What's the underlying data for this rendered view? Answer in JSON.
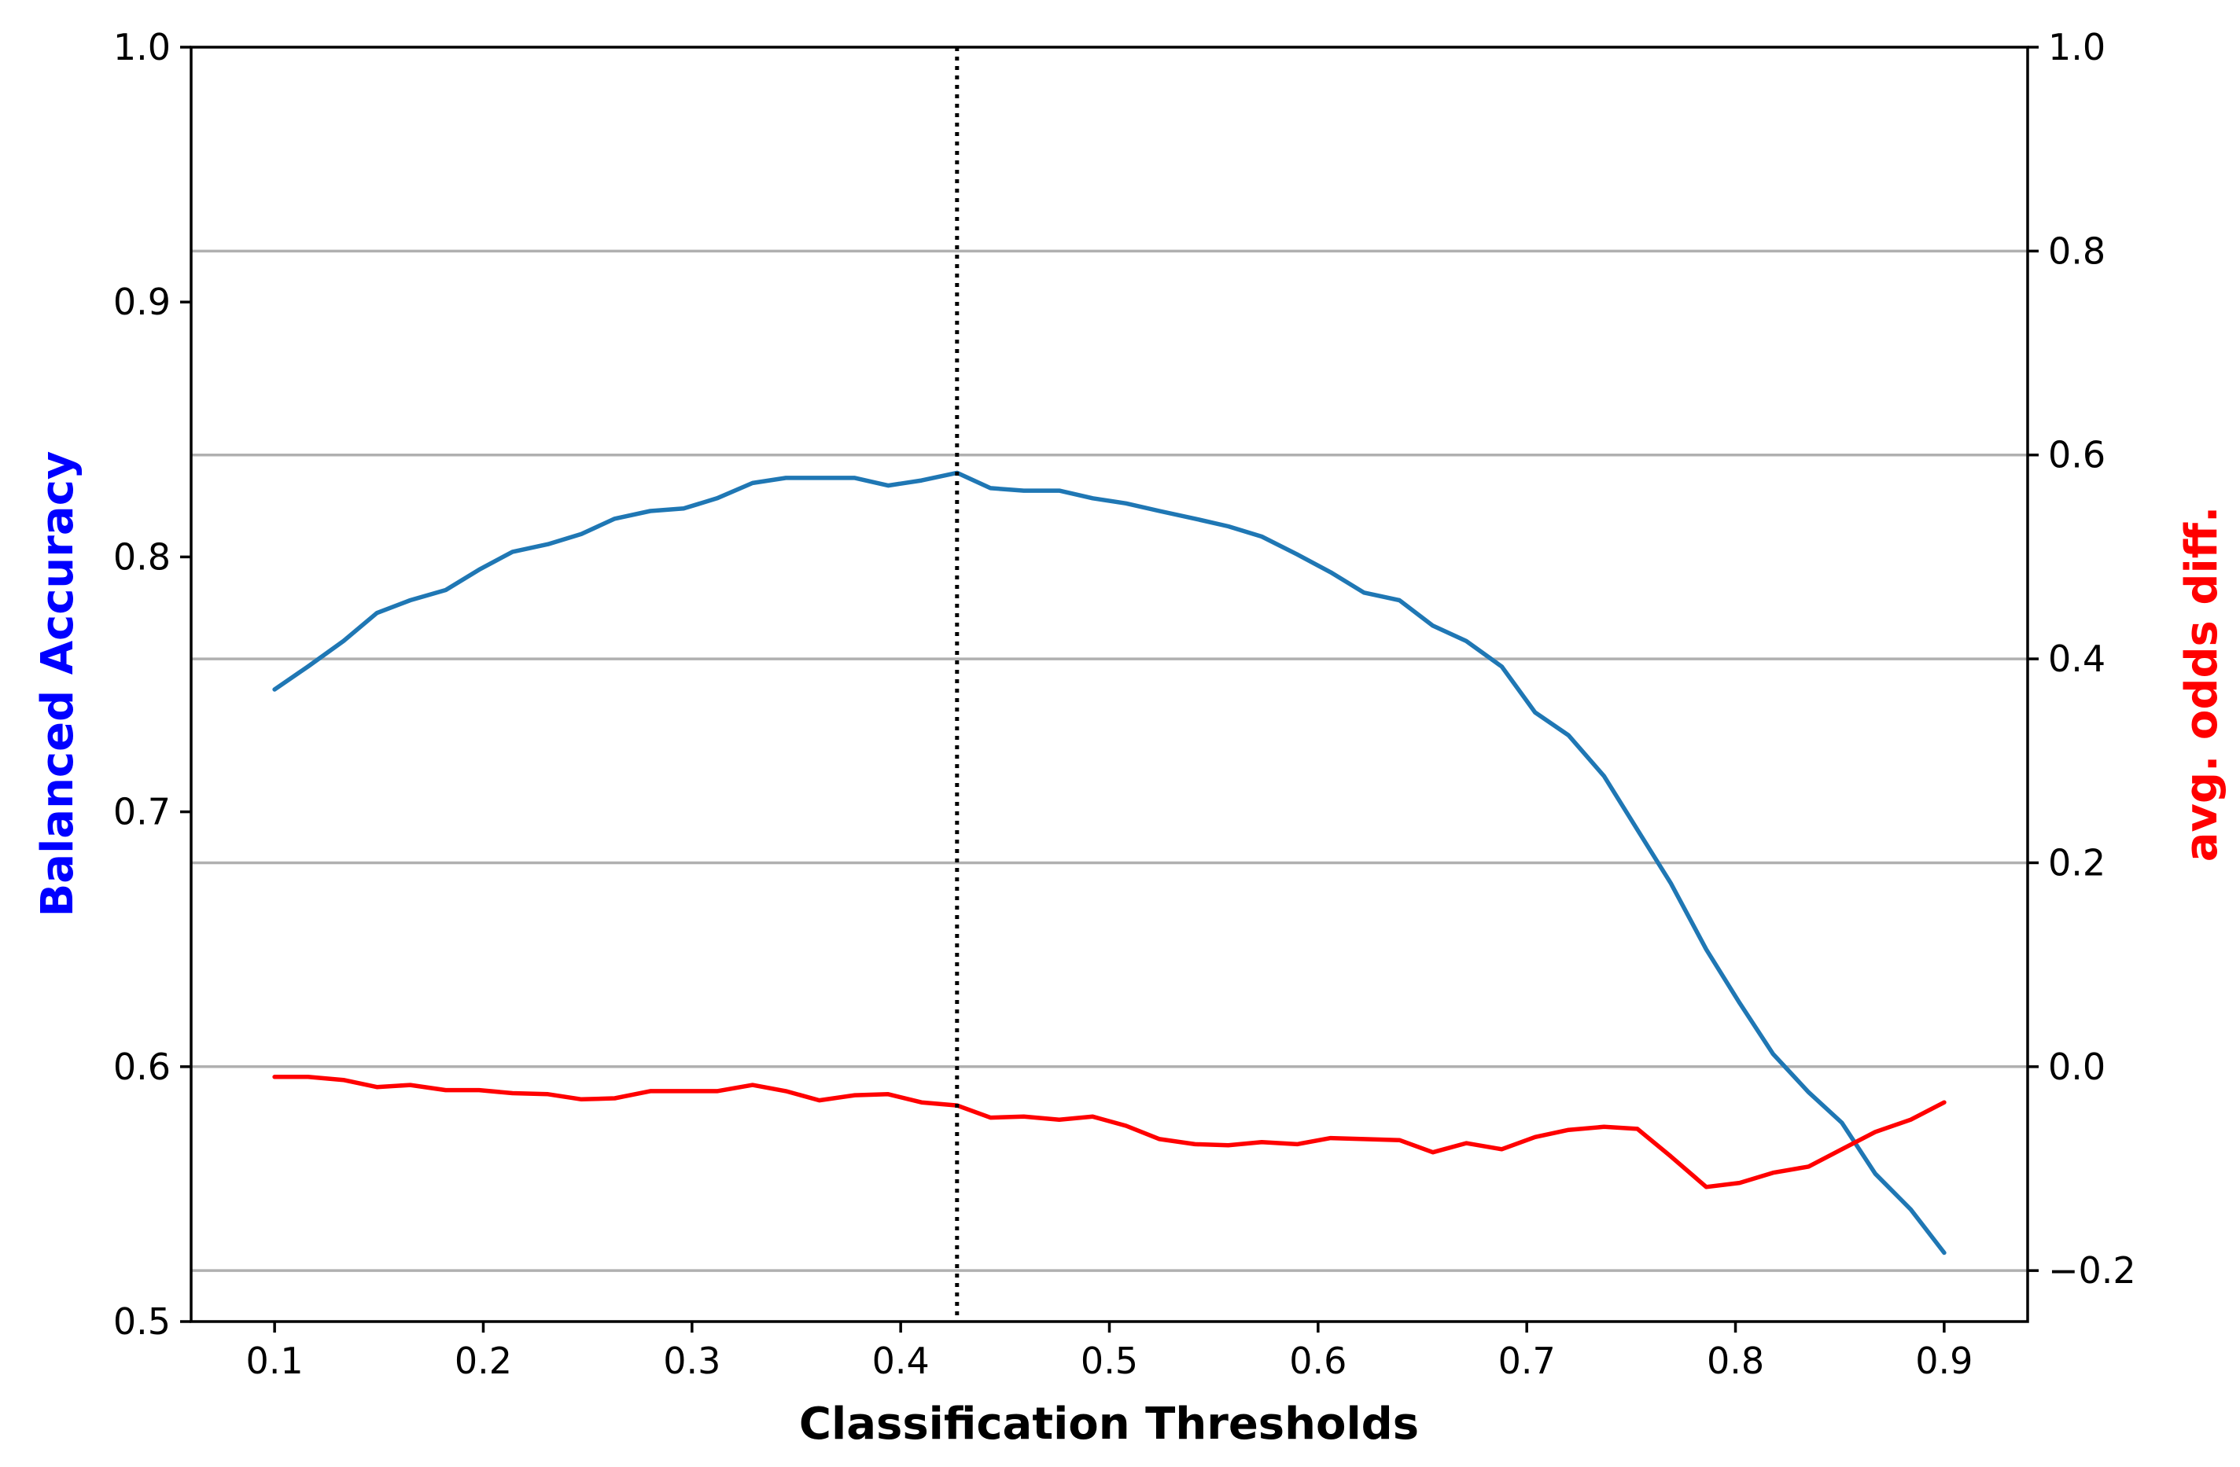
{
  "chart_data": {
    "type": "line",
    "xlabel": "Classification Thresholds",
    "ylabel_left": "Balanced Accuracy",
    "ylabel_right": "avg. odds diff.",
    "colors": {
      "left_label": "#0000ff",
      "right_label": "#ff0000",
      "accuracy_series": "#1f77b4",
      "odds_series": "#ff0000",
      "grid": "#b0b0b0",
      "threshold_line": "#000000"
    },
    "xlim": [
      0.06,
      0.94
    ],
    "ylim_left": [
      0.5,
      1.0
    ],
    "ylim_right": [
      -0.25,
      1.0
    ],
    "x_ticks": [
      "0.1",
      "0.2",
      "0.3",
      "0.4",
      "0.5",
      "0.6",
      "0.7",
      "0.8",
      "0.9"
    ],
    "y_left_ticks": [
      "0.5",
      "0.6",
      "0.7",
      "0.8",
      "0.9",
      "1.0"
    ],
    "y_right_ticks": [
      "−0.2",
      "0.0",
      "0.2",
      "0.4",
      "0.6",
      "0.8",
      "1.0"
    ],
    "grid": "horizontal at right-axis ticks",
    "optimal_threshold": 0.427,
    "x": [
      0.1,
      0.116,
      0.133,
      0.149,
      0.165,
      0.182,
      0.198,
      0.214,
      0.231,
      0.247,
      0.263,
      0.28,
      0.296,
      0.312,
      0.329,
      0.345,
      0.361,
      0.378,
      0.394,
      0.41,
      0.427,
      0.443,
      0.459,
      0.476,
      0.492,
      0.508,
      0.524,
      0.541,
      0.557,
      0.573,
      0.59,
      0.606,
      0.622,
      0.639,
      0.655,
      0.671,
      0.688,
      0.704,
      0.72,
      0.737,
      0.753,
      0.769,
      0.786,
      0.802,
      0.818,
      0.835,
      0.851,
      0.867,
      0.884,
      0.9
    ],
    "series": [
      {
        "axis": "left",
        "values": [
          0.748,
          0.757,
          0.767,
          0.778,
          0.783,
          0.787,
          0.795,
          0.802,
          0.805,
          0.809,
          0.815,
          0.818,
          0.819,
          0.823,
          0.829,
          0.831,
          0.831,
          0.831,
          0.828,
          0.83,
          0.833,
          0.827,
          0.826,
          0.826,
          0.823,
          0.821,
          0.818,
          0.815,
          0.812,
          0.808,
          0.801,
          0.794,
          0.786,
          0.783,
          0.773,
          0.767,
          0.757,
          0.739,
          0.73,
          0.714,
          0.693,
          0.672,
          0.646,
          0.625,
          0.605,
          0.59,
          0.578,
          0.558,
          0.544,
          0.527
        ]
      },
      {
        "axis": "right",
        "values": [
          -0.01,
          -0.01,
          -0.013,
          -0.02,
          -0.018,
          -0.023,
          -0.023,
          -0.026,
          -0.027,
          -0.032,
          -0.031,
          -0.024,
          -0.024,
          -0.024,
          -0.018,
          -0.024,
          -0.033,
          -0.028,
          -0.027,
          -0.035,
          -0.038,
          -0.05,
          -0.049,
          -0.052,
          -0.049,
          -0.058,
          -0.071,
          -0.076,
          -0.077,
          -0.074,
          -0.076,
          -0.07,
          -0.071,
          -0.072,
          -0.084,
          -0.075,
          -0.081,
          -0.069,
          -0.062,
          -0.059,
          -0.061,
          -0.088,
          -0.118,
          -0.114,
          -0.104,
          -0.098,
          -0.081,
          -0.064,
          -0.052,
          -0.035
        ]
      }
    ]
  }
}
